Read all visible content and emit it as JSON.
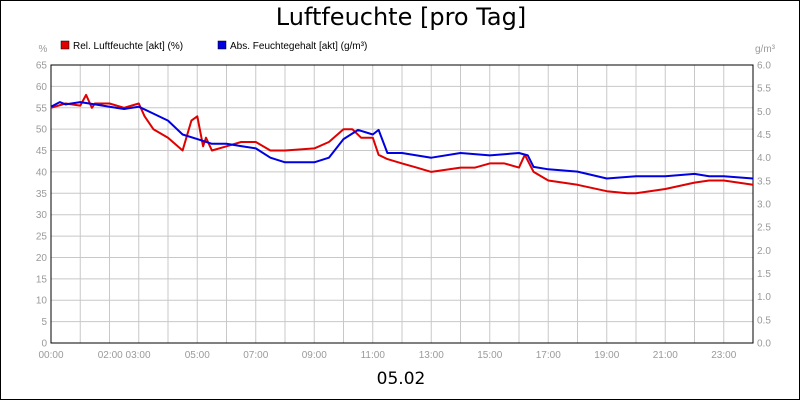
{
  "title": "Luftfeuchte [pro Tag]",
  "date_label": "05.02",
  "chart_data": {
    "type": "line",
    "title": "Luftfeuchte [pro Tag]",
    "x_unit": "hours",
    "xlim": [
      0,
      24
    ],
    "x_tick_labels": [
      "00:00",
      "02:00 03:00",
      "05:00",
      "07:00",
      "09:00",
      "11:00",
      "13:00",
      "15:00",
      "17:00",
      "19:00",
      "21:00",
      "23:00"
    ],
    "x_tick_positions": [
      0,
      2.5,
      5,
      7,
      9,
      11,
      13,
      15,
      17,
      19,
      21,
      23
    ],
    "left_axis": {
      "unit_label": "%",
      "ylim": [
        0,
        65
      ],
      "ticks": [
        0,
        5,
        10,
        15,
        20,
        25,
        30,
        35,
        40,
        45,
        50,
        55,
        60,
        65
      ]
    },
    "right_axis": {
      "unit_label": "g/m³",
      "ylim": [
        0,
        6.0
      ],
      "ticks": [
        "0.0",
        "0.5",
        "1.0",
        "1.5",
        "2.0",
        "2.5",
        "3.0",
        "3.5",
        "4.0",
        "4.5",
        "5.0",
        "5.5",
        "6.0"
      ]
    },
    "grid": true,
    "legend_position": "top-left",
    "series": [
      {
        "name": "Rel. Luftfeuchte [akt] (%)",
        "axis": "left",
        "color": "#e00000",
        "x": [
          0,
          0.5,
          1,
          1.2,
          1.4,
          1.5,
          2,
          2.5,
          3,
          3.2,
          3.5,
          4,
          4.5,
          4.8,
          5,
          5.2,
          5.3,
          5.5,
          6,
          6.5,
          7,
          7.5,
          8,
          9,
          9.5,
          10,
          10.3,
          10.6,
          11,
          11.2,
          11.5,
          12,
          12.5,
          13,
          14,
          14.5,
          15,
          15.5,
          16,
          16.2,
          16.5,
          17,
          18,
          19,
          19.7,
          20,
          21,
          22,
          22.5,
          23,
          23.5,
          24
        ],
        "y": [
          55,
          56,
          55.5,
          58,
          55,
          56,
          56,
          55,
          56,
          53,
          50,
          48,
          45,
          52,
          53,
          46,
          48,
          45,
          46,
          47,
          47,
          45,
          45,
          45.5,
          47,
          50,
          50,
          48,
          48,
          44,
          43,
          42,
          41,
          40,
          41,
          41,
          42,
          42,
          41,
          44,
          40,
          38,
          37,
          35.5,
          35,
          35,
          36,
          37.5,
          38,
          38,
          37.5,
          37
        ]
      },
      {
        "name": "Abs. Feuchtegehalt [akt] (g/m³)",
        "axis": "right",
        "color": "#0000e0",
        "x": [
          0,
          0.3,
          0.5,
          1,
          1.5,
          2,
          2.5,
          3,
          3.5,
          4,
          4.5,
          5,
          5.5,
          6,
          6.5,
          7,
          7.5,
          8,
          9,
          9.5,
          10,
          10.5,
          11,
          11.2,
          11.5,
          12,
          12.5,
          13,
          14,
          15,
          16,
          16.3,
          16.5,
          17,
          18,
          19,
          20,
          21,
          22,
          22.5,
          23,
          24
        ],
        "y": [
          5.1,
          5.2,
          5.15,
          5.2,
          5.15,
          5.1,
          5.05,
          5.1,
          4.95,
          4.8,
          4.5,
          4.4,
          4.3,
          4.3,
          4.25,
          4.2,
          4.0,
          3.9,
          3.9,
          4.0,
          4.4,
          4.6,
          4.5,
          4.6,
          4.1,
          4.1,
          4.05,
          4.0,
          4.1,
          4.05,
          4.1,
          4.05,
          3.8,
          3.75,
          3.7,
          3.55,
          3.6,
          3.6,
          3.65,
          3.6,
          3.6,
          3.55
        ]
      }
    ]
  }
}
